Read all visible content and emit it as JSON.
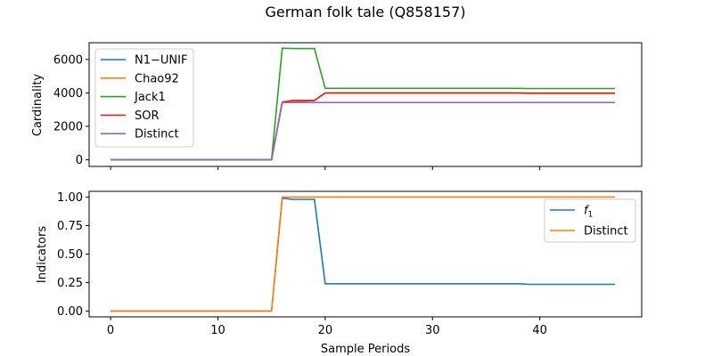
{
  "chart_data": {
    "title": "German folk tale (Q858157)",
    "xlabel": "Sample Periods",
    "x": [
      0,
      1,
      2,
      3,
      4,
      5,
      6,
      7,
      8,
      9,
      10,
      11,
      12,
      13,
      14,
      15,
      16,
      17,
      18,
      19,
      20,
      21,
      22,
      23,
      24,
      25,
      26,
      27,
      28,
      29,
      30,
      31,
      32,
      33,
      34,
      35,
      36,
      37,
      38,
      39,
      40,
      41,
      42,
      43,
      44,
      45,
      46,
      47
    ],
    "xlim": [
      -2,
      49.5
    ],
    "xticks": [
      0,
      10,
      20,
      30,
      40
    ],
    "panels": [
      {
        "type": "line",
        "ylabel": "Cardinality",
        "ylim": [
          -400,
          7000
        ],
        "yticks": [
          0,
          2000,
          4000,
          6000
        ],
        "legend": "top-left",
        "series": [
          {
            "name": "N1−UNIF",
            "color": "#1f77b4",
            "values": [
              0,
              0,
              0,
              0,
              0,
              0,
              0,
              0,
              0,
              0,
              0,
              0,
              0,
              0,
              0,
              0,
              3450,
              3500,
              3500,
              3550,
              3980,
              3980,
              3980,
              3980,
              3980,
              3980,
              3980,
              3980,
              3980,
              3980,
              3980,
              3980,
              3980,
              3980,
              3980,
              3980,
              3980,
              3980,
              3980,
              3970,
              3970,
              3970,
              3970,
              3970,
              3970,
              3970,
              3970,
              3970
            ]
          },
          {
            "name": "Chao92",
            "color": "#ff7f0e",
            "values": [
              0,
              0,
              0,
              0,
              0,
              0,
              0,
              0,
              0,
              0,
              0,
              0,
              0,
              0,
              0,
              0,
              3450,
              3500,
              3500,
              3550,
              3980,
              3980,
              3980,
              3980,
              3980,
              3980,
              3980,
              3980,
              3980,
              3980,
              3980,
              3980,
              3980,
              3980,
              3980,
              3980,
              3980,
              3980,
              3980,
              3970,
              3970,
              3970,
              3970,
              3970,
              3970,
              3970,
              3970,
              3970
            ]
          },
          {
            "name": "Jack1",
            "color": "#2ca02c",
            "values": [
              0,
              0,
              0,
              0,
              0,
              0,
              0,
              0,
              0,
              0,
              0,
              0,
              0,
              0,
              0,
              0,
              6680,
              6650,
              6650,
              6650,
              4270,
              4270,
              4270,
              4270,
              4270,
              4270,
              4270,
              4270,
              4270,
              4270,
              4270,
              4270,
              4270,
              4270,
              4270,
              4270,
              4270,
              4270,
              4270,
              4260,
              4260,
              4260,
              4260,
              4260,
              4260,
              4260,
              4260,
              4260
            ]
          },
          {
            "name": "SOR",
            "color": "#d62728",
            "values": [
              0,
              0,
              0,
              0,
              0,
              0,
              0,
              0,
              0,
              0,
              0,
              0,
              0,
              0,
              0,
              0,
              3450,
              3550,
              3550,
              3550,
              4000,
              4000,
              4000,
              4000,
              4000,
              4000,
              4000,
              4000,
              4000,
              4000,
              4000,
              4000,
              4000,
              4000,
              4000,
              4000,
              4000,
              4000,
              4000,
              3990,
              3990,
              3990,
              3990,
              3990,
              3990,
              3990,
              3990,
              3990
            ]
          },
          {
            "name": "Distinct",
            "color": "#9467bd",
            "values": [
              0,
              0,
              0,
              0,
              0,
              0,
              0,
              0,
              0,
              0,
              0,
              0,
              0,
              0,
              0,
              0,
              3420,
              3420,
              3420,
              3420,
              3420,
              3420,
              3420,
              3420,
              3420,
              3420,
              3420,
              3420,
              3420,
              3420,
              3420,
              3420,
              3420,
              3420,
              3420,
              3420,
              3420,
              3420,
              3420,
              3420,
              3420,
              3420,
              3420,
              3420,
              3420,
              3420,
              3420,
              3420
            ]
          }
        ]
      },
      {
        "type": "line",
        "ylabel": "Indicators",
        "ylim": [
          -0.05,
          1.05
        ],
        "yticks": [
          0.0,
          0.25,
          0.5,
          0.75,
          1.0
        ],
        "yticklabels": [
          "0.00",
          "0.25",
          "0.50",
          "0.75",
          "1.00"
        ],
        "legend": "upper-right",
        "series": [
          {
            "name": "f1",
            "color": "#1f77b4",
            "values": [
              0,
              0,
              0,
              0,
              0,
              0,
              0,
              0,
              0,
              0,
              0,
              0,
              0,
              0,
              0,
              0,
              0.99,
              0.98,
              0.98,
              0.98,
              0.24,
              0.24,
              0.24,
              0.24,
              0.24,
              0.24,
              0.24,
              0.24,
              0.24,
              0.24,
              0.24,
              0.24,
              0.24,
              0.24,
              0.24,
              0.24,
              0.24,
              0.24,
              0.24,
              0.235,
              0.235,
              0.235,
              0.235,
              0.235,
              0.235,
              0.235,
              0.235,
              0.235
            ]
          },
          {
            "name": "Distinct",
            "color": "#ff7f0e",
            "values": [
              0,
              0,
              0,
              0,
              0,
              0,
              0,
              0,
              0,
              0,
              0,
              0,
              0,
              0,
              0,
              0,
              1,
              1,
              1,
              1,
              1,
              1,
              1,
              1,
              1,
              1,
              1,
              1,
              1,
              1,
              1,
              1,
              1,
              1,
              1,
              1,
              1,
              1,
              1,
              1,
              1,
              1,
              1,
              1,
              1,
              1,
              1,
              1
            ]
          }
        ]
      }
    ]
  }
}
